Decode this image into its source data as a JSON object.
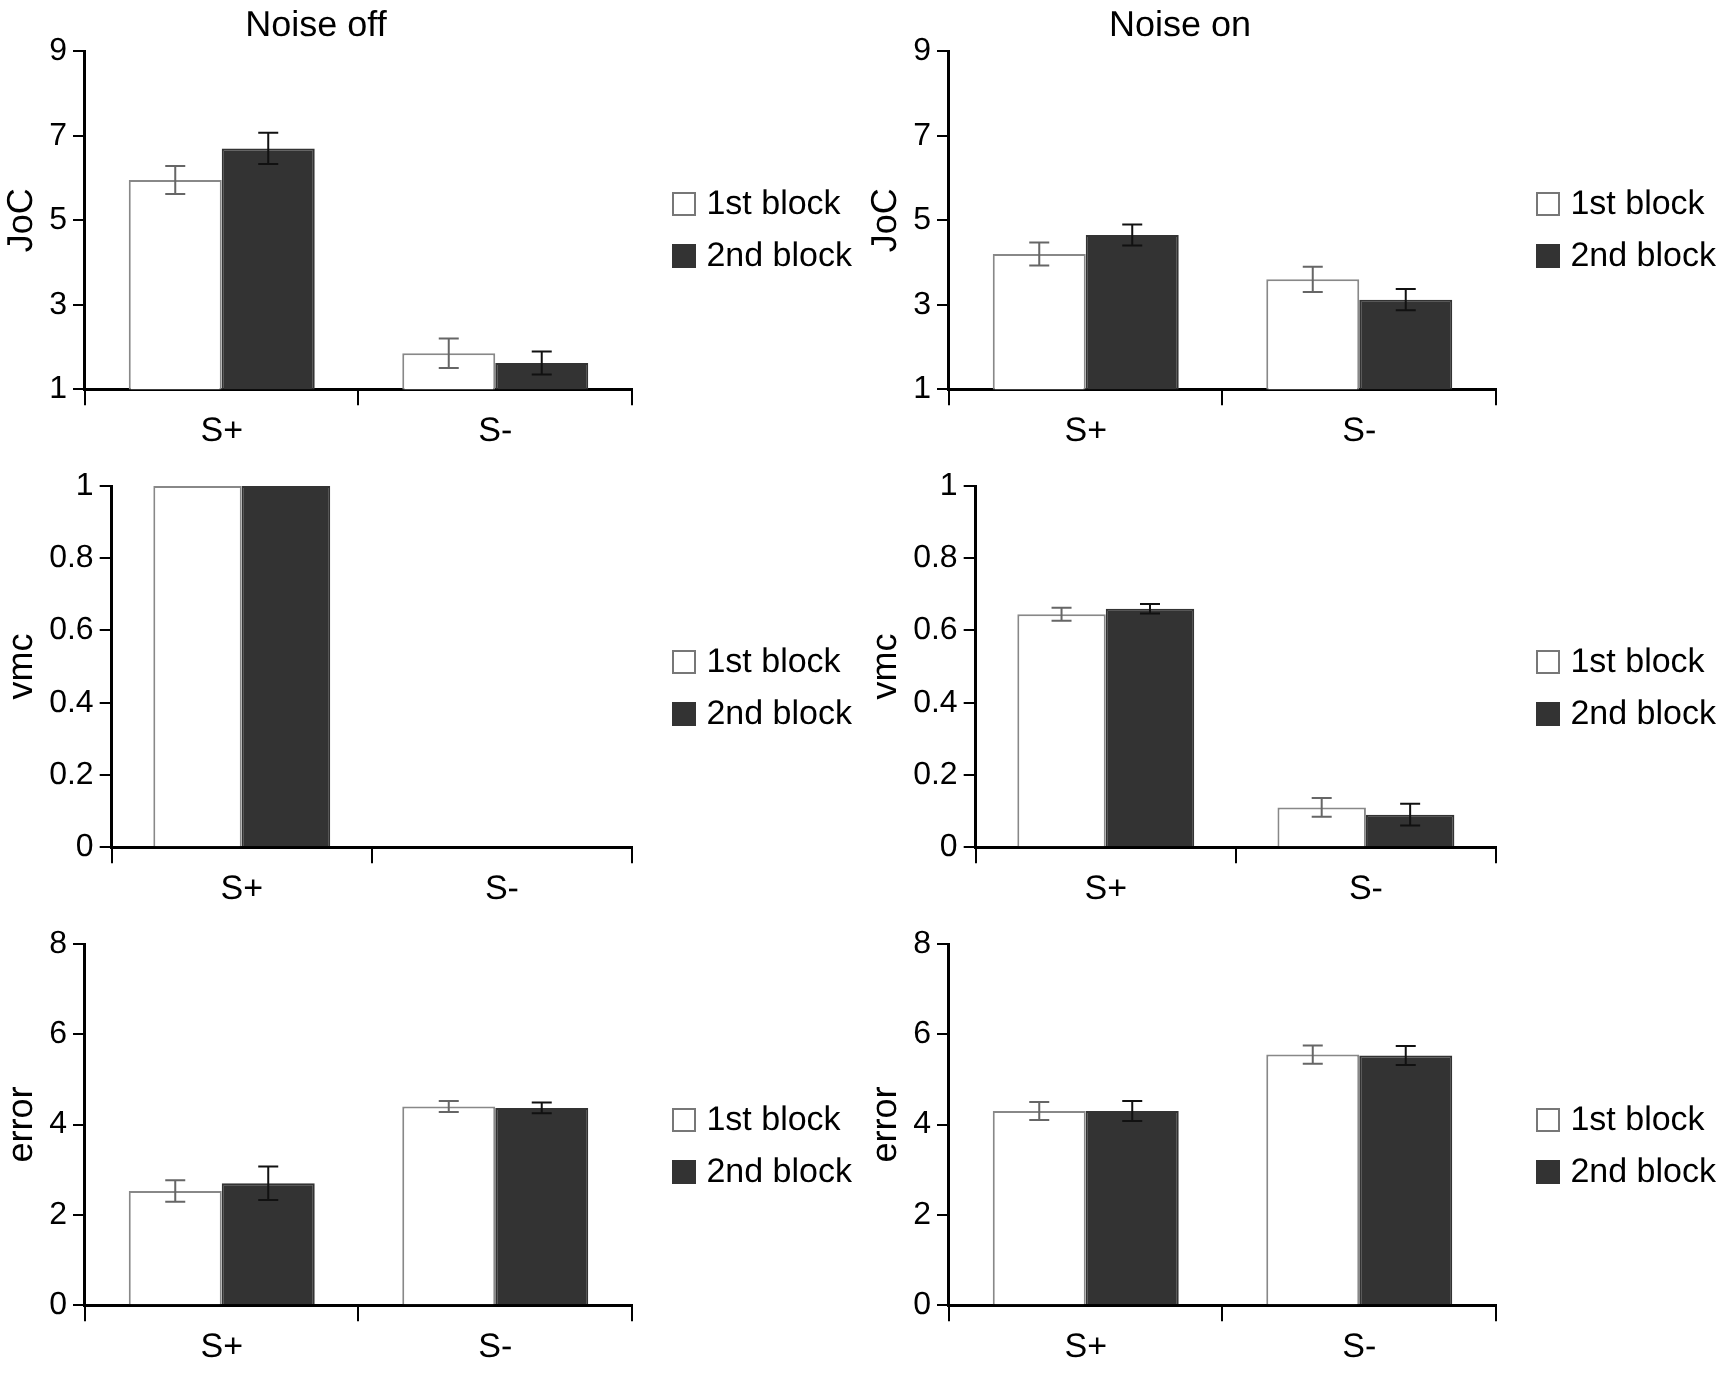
{
  "chart_data": [
    {
      "type": "bar",
      "title": "Noise off",
      "ylabel": "JoC",
      "categories": [
        "S+",
        "S-"
      ],
      "ylim": [
        1,
        9
      ],
      "yticks": [
        1,
        3,
        5,
        7,
        9
      ],
      "grid": false,
      "legend": "right",
      "series": [
        {
          "name": "1st block",
          "color": "#ffffff",
          "values": [
            5.95,
            1.85
          ],
          "errors": [
            0.33,
            0.35
          ]
        },
        {
          "name": "2nd block",
          "color": "#333333",
          "values": [
            6.7,
            1.62
          ],
          "errors": [
            0.37,
            0.27
          ]
        }
      ]
    },
    {
      "type": "bar",
      "title": "Noise on",
      "ylabel": "JoC",
      "categories": [
        "S+",
        "S-"
      ],
      "ylim": [
        1,
        9
      ],
      "yticks": [
        1,
        3,
        5,
        7,
        9
      ],
      "grid": false,
      "legend": "right",
      "series": [
        {
          "name": "1st block",
          "color": "#ffffff",
          "values": [
            4.2,
            3.6
          ],
          "errors": [
            0.27,
            0.3
          ]
        },
        {
          "name": "2nd block",
          "color": "#333333",
          "values": [
            4.65,
            3.12
          ],
          "errors": [
            0.25,
            0.25
          ]
        }
      ]
    },
    {
      "type": "bar",
      "ylabel": "vmc",
      "categories": [
        "S+",
        "S-"
      ],
      "ylim": [
        0,
        1
      ],
      "yticks": [
        0,
        0.2,
        0.4,
        0.6,
        0.8,
        1
      ],
      "grid": false,
      "legend": "right",
      "series": [
        {
          "name": "1st block",
          "color": "#ffffff",
          "values": [
            1,
            0
          ]
        },
        {
          "name": "2nd block",
          "color": "#333333",
          "values": [
            1,
            0
          ]
        }
      ]
    },
    {
      "type": "bar",
      "ylabel": "vmc",
      "categories": [
        "S+",
        "S-"
      ],
      "ylim": [
        0,
        1
      ],
      "yticks": [
        0,
        0.2,
        0.4,
        0.6,
        0.8,
        1
      ],
      "grid": false,
      "legend": "right",
      "series": [
        {
          "name": "1st block",
          "color": "#ffffff",
          "values": [
            0.645,
            0.11
          ],
          "errors": [
            0.018,
            0.026
          ]
        },
        {
          "name": "2nd block",
          "color": "#333333",
          "values": [
            0.66,
            0.09
          ],
          "errors": [
            0.013,
            0.03
          ]
        }
      ]
    },
    {
      "type": "bar",
      "ylabel": "error",
      "categories": [
        "S+",
        "S-"
      ],
      "ylim": [
        0,
        8
      ],
      "yticks": [
        0,
        2,
        4,
        6,
        8
      ],
      "grid": false,
      "legend": "right",
      "series": [
        {
          "name": "1st block",
          "color": "#ffffff",
          "values": [
            2.53,
            4.4
          ],
          "errors": [
            0.24,
            0.12
          ]
        },
        {
          "name": "2nd block",
          "color": "#333333",
          "values": [
            2.7,
            4.37
          ],
          "errors": [
            0.37,
            0.12
          ]
        }
      ]
    },
    {
      "type": "bar",
      "ylabel": "error",
      "categories": [
        "S+",
        "S-"
      ],
      "ylim": [
        0,
        8
      ],
      "yticks": [
        0,
        2,
        4,
        6,
        8
      ],
      "grid": false,
      "legend": "right",
      "series": [
        {
          "name": "1st block",
          "color": "#ffffff",
          "values": [
            4.3,
            5.55
          ],
          "errors": [
            0.2,
            0.2
          ]
        },
        {
          "name": "2nd block",
          "color": "#333333",
          "values": [
            4.3,
            5.53
          ],
          "errors": [
            0.22,
            0.21
          ]
        }
      ]
    }
  ]
}
